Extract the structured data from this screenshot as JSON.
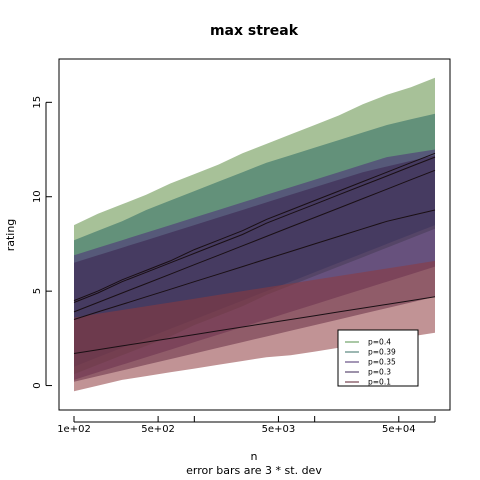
{
  "chart_data": {
    "type": "area",
    "title": "max streak",
    "xlabel": "n",
    "ylabel": "rating",
    "caption": "error bars are 3 * st. dev",
    "x_scale": "log",
    "xlim": [
      100,
      100000
    ],
    "ylim": [
      -0.5,
      16.5
    ],
    "x_ticks": [
      {
        "value": 100,
        "label": "1e+02"
      },
      {
        "value": 500,
        "label": "5e+02"
      },
      {
        "value": 5000,
        "label": "5e+03"
      },
      {
        "value": 50000,
        "label": "5e+04"
      }
    ],
    "x_minor_ticks": [
      1000,
      10000,
      100000
    ],
    "y_ticks": [
      0,
      5,
      10,
      15
    ],
    "legend_position": "bottom-right",
    "x": [
      100,
      158,
      251,
      398,
      631,
      1000,
      1585,
      2512,
      3981,
      6310,
      10000,
      15849,
      25119,
      39811,
      63096,
      100000
    ],
    "series": [
      {
        "name": "p=0.4",
        "color": "#56904c",
        "band_color": "#5e8e43",
        "mean": [
          4.5,
          5.0,
          5.6,
          6.1,
          6.6,
          7.2,
          7.7,
          8.2,
          8.8,
          9.3,
          9.8,
          10.3,
          10.8,
          11.3,
          11.8,
          12.3
        ],
        "lower": [
          0.6,
          1.1,
          1.6,
          2.1,
          2.6,
          3.2,
          3.7,
          4.2,
          4.8,
          5.3,
          5.8,
          6.3,
          6.8,
          7.3,
          7.8,
          8.3
        ],
        "upper": [
          8.5,
          9.1,
          9.6,
          10.1,
          10.7,
          11.2,
          11.7,
          12.3,
          12.8,
          13.3,
          13.8,
          14.3,
          14.9,
          15.4,
          15.8,
          16.3
        ]
      },
      {
        "name": "p=0.39",
        "color": "#3a6f66",
        "band_color": "#2c6a63",
        "mean": [
          4.4,
          4.9,
          5.5,
          6.0,
          6.5,
          7.0,
          7.5,
          8.0,
          8.6,
          9.1,
          9.6,
          10.1,
          10.6,
          11.1,
          11.6,
          12.1
        ],
        "lower": [
          1.0,
          1.5,
          2.0,
          2.5,
          3.0,
          3.5,
          4.0,
          4.5,
          5.0,
          5.5,
          6.0,
          6.5,
          7.0,
          7.5,
          8.0,
          8.5
        ],
        "upper": [
          7.7,
          8.2,
          8.7,
          9.3,
          9.8,
          10.3,
          10.8,
          11.3,
          11.8,
          12.2,
          12.6,
          13.0,
          13.4,
          13.8,
          14.1,
          14.4
        ]
      },
      {
        "name": "p=0.35",
        "color": "#4a2f6e",
        "band_color": "#4d2c78",
        "mean": [
          3.9,
          4.4,
          4.9,
          5.4,
          5.9,
          6.4,
          6.9,
          7.4,
          7.9,
          8.4,
          8.9,
          9.4,
          9.9,
          10.4,
          10.9,
          11.4
        ],
        "lower": [
          0.3,
          0.7,
          1.1,
          1.5,
          1.9,
          2.3,
          2.7,
          3.1,
          3.5,
          3.9,
          4.3,
          4.7,
          5.1,
          5.5,
          5.9,
          6.3
        ],
        "upper": [
          6.9,
          7.3,
          7.7,
          8.1,
          8.5,
          8.9,
          9.3,
          9.7,
          10.1,
          10.5,
          10.9,
          11.3,
          11.7,
          12.1,
          12.3,
          12.5
        ]
      },
      {
        "name": "p=0.3",
        "color": "#3b2455",
        "band_color": "#3a234f",
        "mean": [
          3.5,
          3.9,
          4.3,
          4.7,
          5.1,
          5.5,
          5.9,
          6.3,
          6.7,
          7.1,
          7.5,
          7.9,
          8.3,
          8.7,
          9.0,
          9.3
        ],
        "lower": [
          0.2,
          0.5,
          0.8,
          1.1,
          1.4,
          1.7,
          2.0,
          2.3,
          2.6,
          2.9,
          3.2,
          3.5,
          3.8,
          4.1,
          4.4,
          4.7
        ],
        "upper": [
          6.5,
          6.9,
          7.3,
          7.7,
          8.1,
          8.5,
          8.9,
          9.3,
          9.7,
          10.1,
          10.5,
          10.9,
          11.3,
          11.6,
          11.9,
          12.2
        ]
      },
      {
        "name": "p=0.1",
        "color": "#5a1e2c",
        "band_color": "#8e3a3e",
        "mean": [
          1.7,
          1.9,
          2.1,
          2.3,
          2.5,
          2.7,
          2.9,
          3.1,
          3.3,
          3.5,
          3.7,
          3.9,
          4.1,
          4.3,
          4.5,
          4.7
        ],
        "lower": [
          -0.3,
          0.0,
          0.3,
          0.5,
          0.7,
          0.9,
          1.1,
          1.3,
          1.5,
          1.6,
          1.8,
          2.0,
          2.2,
          2.4,
          2.6,
          2.8
        ],
        "upper": [
          3.6,
          3.8,
          4.0,
          4.2,
          4.4,
          4.6,
          4.8,
          5.0,
          5.2,
          5.4,
          5.6,
          5.8,
          6.0,
          6.2,
          6.4,
          6.6
        ]
      }
    ]
  }
}
